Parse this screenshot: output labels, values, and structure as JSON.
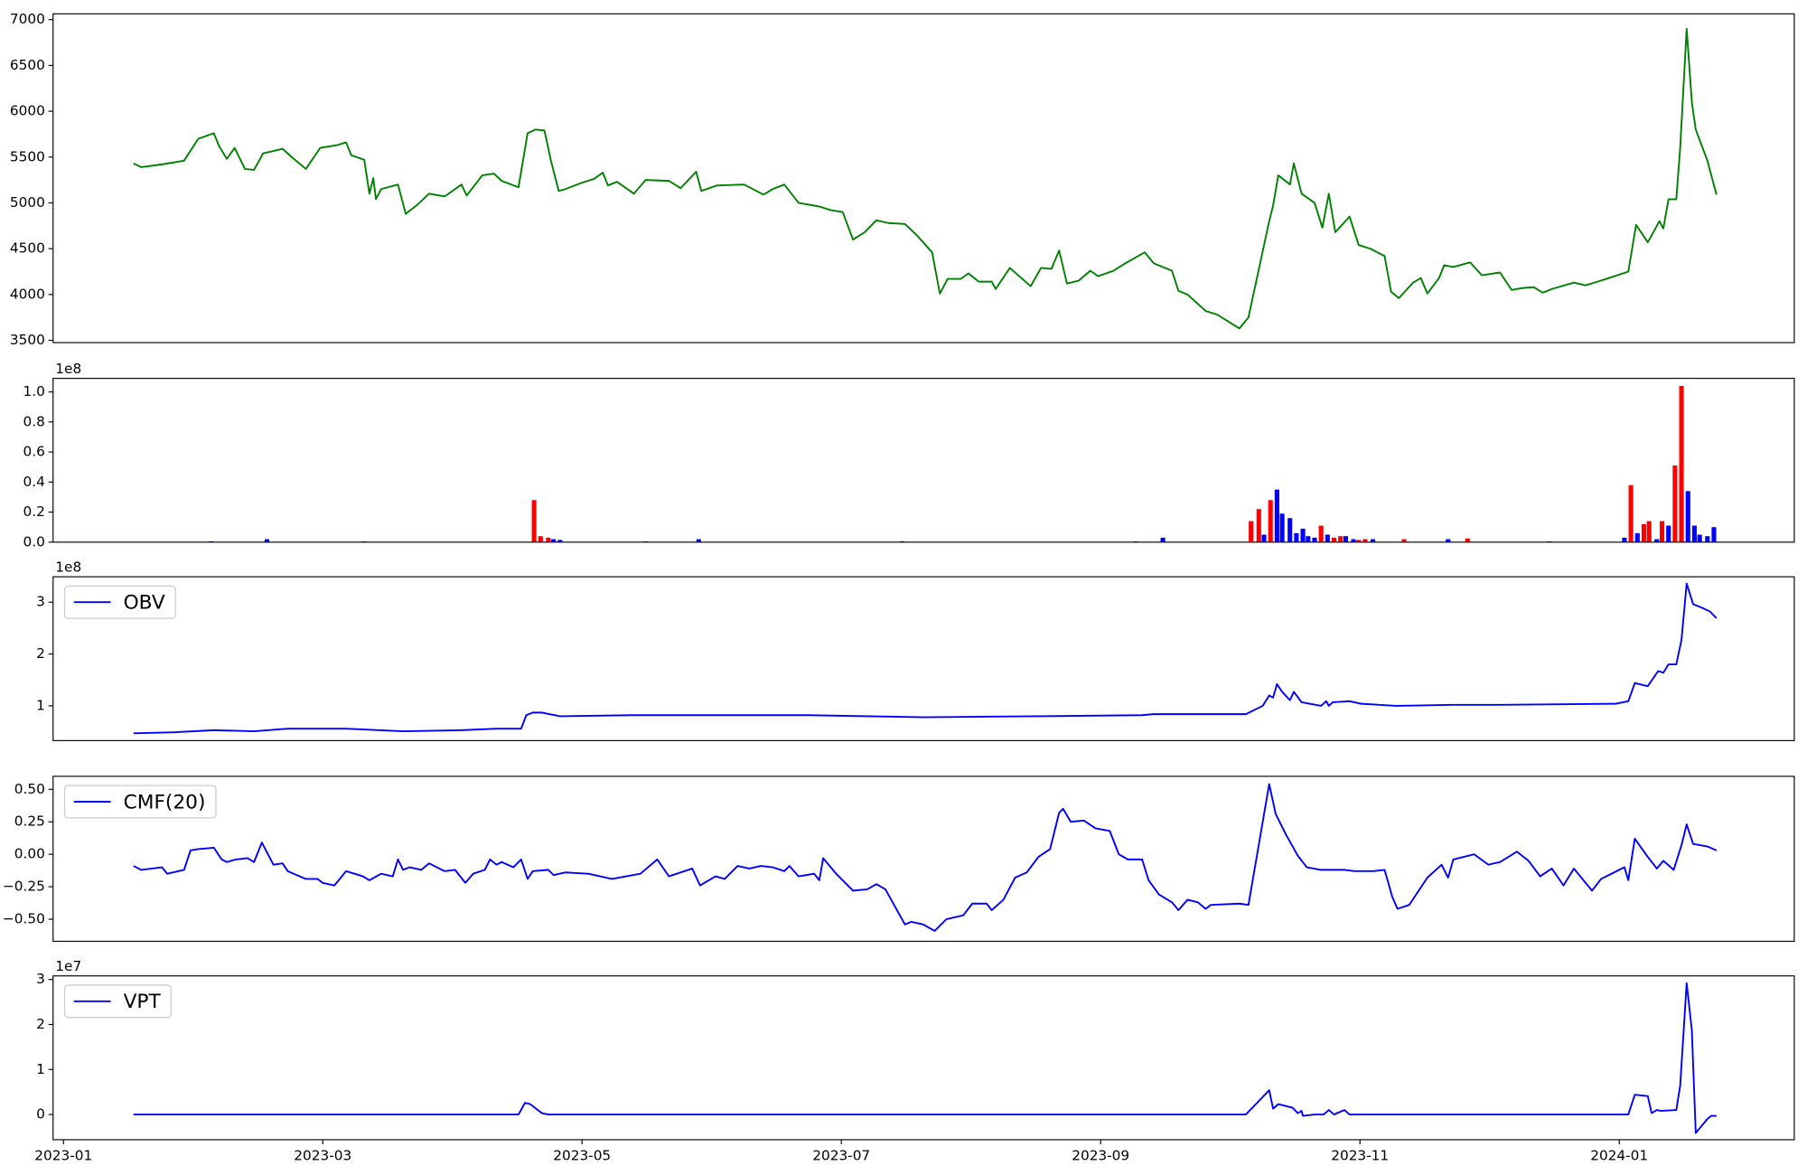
{
  "chart_data": [
    {
      "type": "line",
      "color": "green",
      "xlim": [
        -0.08,
        13.35
      ],
      "ylim": [
        3475,
        7063
      ],
      "yticks": [
        3500,
        4000,
        4500,
        5000,
        5500,
        6000,
        6500,
        7000
      ],
      "x": [
        0.54,
        0.6,
        0.76,
        0.93,
        1.04,
        1.16,
        1.2,
        1.26,
        1.32,
        1.4,
        1.47,
        1.54,
        1.69,
        1.76,
        1.87,
        1.98,
        2.11,
        2.18,
        2.22,
        2.32,
        2.36,
        2.39,
        2.41,
        2.45,
        2.58,
        2.64,
        2.73,
        2.82,
        2.94,
        3.07,
        3.11,
        3.23,
        3.32,
        3.38,
        3.51,
        3.58,
        3.64,
        3.71,
        3.76,
        3.82,
        3.87,
        4.0,
        4.09,
        4.16,
        4.2,
        4.27,
        4.4,
        4.49,
        4.67,
        4.76,
        4.88,
        4.92,
        5.04,
        5.25,
        5.4,
        5.47,
        5.56,
        5.67,
        5.83,
        5.92,
        6.01,
        6.09,
        6.18,
        6.27,
        6.36,
        6.49,
        6.58,
        6.7,
        6.76,
        6.82,
        6.92,
        6.98,
        7.06,
        7.16,
        7.19,
        7.3,
        7.46,
        7.54,
        7.62,
        7.68,
        7.74,
        7.83,
        7.92,
        7.98,
        8.1,
        8.19,
        8.34,
        8.41,
        8.55,
        8.6,
        8.67,
        8.81,
        8.9,
        9.07,
        9.14,
        9.3,
        9.33,
        9.37,
        9.46,
        9.49,
        9.55,
        9.65,
        9.71,
        9.76,
        9.81,
        9.92,
        9.99,
        10.08,
        10.19,
        10.24,
        10.3,
        10.41,
        10.47,
        10.52,
        10.61,
        10.65,
        10.72,
        10.85,
        10.94,
        11.08,
        11.17,
        11.25,
        11.34,
        11.41,
        11.48,
        11.65,
        11.74,
        11.81,
        11.9,
        12.07,
        12.13,
        12.22,
        12.31,
        12.34,
        12.38,
        12.44,
        12.47,
        12.52,
        12.56,
        12.59,
        12.68,
        12.75
      ],
      "values": [
        5430,
        5390,
        5420,
        5460,
        5700,
        5760,
        5620,
        5480,
        5600,
        5370,
        5360,
        5540,
        5590,
        5500,
        5370,
        5600,
        5630,
        5660,
        5520,
        5470,
        5100,
        5270,
        5040,
        5150,
        5200,
        4880,
        4980,
        5100,
        5070,
        5200,
        5080,
        5300,
        5320,
        5240,
        5170,
        5760,
        5800,
        5790,
        5460,
        5130,
        5150,
        5220,
        5260,
        5330,
        5190,
        5230,
        5100,
        5250,
        5240,
        5160,
        5340,
        5130,
        5190,
        5200,
        5090,
        5150,
        5200,
        5000,
        4960,
        4920,
        4900,
        4600,
        4680,
        4810,
        4780,
        4770,
        4650,
        4460,
        4010,
        4170,
        4170,
        4230,
        4140,
        4140,
        4060,
        4290,
        4090,
        4290,
        4280,
        4480,
        4120,
        4150,
        4260,
        4200,
        4260,
        4340,
        4460,
        4340,
        4260,
        4040,
        4000,
        3820,
        3780,
        3630,
        3750,
        4800,
        4970,
        5300,
        5200,
        5430,
        5100,
        5000,
        4730,
        5100,
        4680,
        4850,
        4540,
        4500,
        4420,
        4030,
        3960,
        4130,
        4180,
        4010,
        4180,
        4320,
        4300,
        4350,
        4210,
        4240,
        4050,
        4070,
        4080,
        4020,
        4060,
        4130,
        4100,
        4130,
        4170,
        4250,
        4760,
        4570,
        4800,
        4720,
        5040,
        5040,
        5600,
        6900,
        6100,
        5800,
        5460,
        5090
      ]
    },
    {
      "type": "bar",
      "xlim": [
        -0.08,
        13.35
      ],
      "ylim": [
        0,
        1.09
      ],
      "y_offset_label": "1e8",
      "yticks": [
        {
          "value": 0,
          "label": "0.0"
        },
        0.2,
        0.4,
        0.6,
        0.8,
        {
          "value": 1,
          "label": "1.0"
        }
      ],
      "x": [
        1.14,
        1.57,
        2.32,
        3.63,
        3.68,
        3.74,
        3.78,
        3.83,
        4.49,
        4.9,
        6.47,
        8.27,
        8.48,
        9.16,
        9.22,
        9.26,
        9.31,
        9.36,
        9.4,
        9.46,
        9.51,
        9.56,
        9.6,
        9.65,
        9.7,
        9.75,
        9.8,
        9.85,
        9.89,
        9.95,
        9.99,
        10.04,
        10.1,
        10.34,
        10.68,
        10.83,
        11.46,
        12.04,
        12.09,
        12.14,
        12.19,
        12.23,
        12.29,
        12.33,
        12.38,
        12.43,
        12.48,
        12.53,
        12.58,
        12.62,
        12.68,
        12.73
      ],
      "values": [
        0.006,
        0.02,
        0.005,
        0.28,
        0.04,
        0.03,
        0.02,
        0.015,
        0.006,
        0.02,
        0.006,
        0.005,
        0.03,
        0.14,
        0.22,
        0.05,
        0.28,
        0.35,
        0.19,
        0.16,
        0.06,
        0.09,
        0.04,
        0.03,
        0.11,
        0.05,
        0.03,
        0.04,
        0.04,
        0.02,
        0.015,
        0.02,
        0.02,
        0.02,
        0.02,
        0.025,
        0.005,
        0.03,
        0.38,
        0.06,
        0.12,
        0.14,
        0.02,
        0.14,
        0.11,
        0.51,
        1.04,
        0.34,
        0.11,
        0.05,
        0.04,
        0.1
      ],
      "colors": [
        "blue",
        "blue",
        "blue",
        "red",
        "red",
        "red",
        "blue",
        "blue",
        "red",
        "blue",
        "blue",
        "blue",
        "blue",
        "red",
        "red",
        "blue",
        "red",
        "blue",
        "blue",
        "blue",
        "blue",
        "blue",
        "blue",
        "blue",
        "red",
        "blue",
        "red",
        "red",
        "blue",
        "blue",
        "red",
        "red",
        "blue",
        "red",
        "blue",
        "red",
        "blue",
        "blue",
        "red",
        "blue",
        "red",
        "red",
        "blue",
        "red",
        "blue",
        "red",
        "red",
        "blue",
        "blue",
        "blue",
        "blue",
        "blue"
      ]
    },
    {
      "type": "line",
      "xlim": [
        -0.08,
        13.35
      ],
      "ylim": [
        0.33,
        3.49
      ],
      "y_offset_label": "1e8",
      "yticks": [
        1,
        2,
        3
      ],
      "legend": "upper left",
      "x": [
        0.54,
        0.85,
        1.16,
        1.47,
        1.73,
        2.18,
        2.62,
        3.07,
        3.34,
        3.53,
        3.57,
        3.62,
        3.69,
        3.83,
        4.4,
        5.29,
        5.74,
        6.63,
        7.52,
        8.32,
        8.41,
        9.12,
        9.25,
        9.3,
        9.33,
        9.36,
        9.4,
        9.46,
        9.49,
        9.55,
        9.7,
        9.74,
        9.76,
        9.79,
        9.92,
        10.01,
        10.28,
        10.72,
        11.08,
        11.97,
        12.07,
        12.12,
        12.22,
        12.3,
        12.34,
        12.38,
        12.44,
        12.48,
        12.52,
        12.57,
        12.64,
        12.7,
        12.75
      ],
      "series": [
        {
          "name": "OBV",
          "color": "blue",
          "values": [
            0.47,
            0.49,
            0.53,
            0.51,
            0.56,
            0.56,
            0.51,
            0.53,
            0.56,
            0.56,
            0.82,
            0.87,
            0.87,
            0.8,
            0.82,
            0.82,
            0.82,
            0.78,
            0.8,
            0.82,
            0.84,
            0.84,
            1.0,
            1.2,
            1.16,
            1.42,
            1.27,
            1.11,
            1.27,
            1.07,
            1.0,
            1.09,
            1.0,
            1.07,
            1.09,
            1.04,
            1.0,
            1.02,
            1.02,
            1.04,
            1.09,
            1.44,
            1.38,
            1.67,
            1.64,
            1.8,
            1.8,
            2.27,
            3.36,
            2.96,
            2.89,
            2.82,
            2.69
          ]
        }
      ]
    },
    {
      "type": "line",
      "xlim": [
        -0.08,
        13.35
      ],
      "ylim": [
        -0.67,
        0.6
      ],
      "legend": "upper left",
      "yticks": [
        {
          "value": -0.5,
          "label": "−0.50"
        },
        {
          "value": -0.25,
          "label": "−0.25"
        },
        {
          "value": 0,
          "label": "0.00"
        },
        {
          "value": 0.25,
          "label": "0.25"
        },
        {
          "value": 0.5,
          "label": "0.50"
        }
      ],
      "x": [
        0.54,
        0.6,
        0.76,
        0.8,
        0.93,
        0.98,
        1.04,
        1.16,
        1.22,
        1.26,
        1.33,
        1.42,
        1.47,
        1.53,
        1.62,
        1.69,
        1.73,
        1.87,
        1.96,
        2.0,
        2.09,
        2.18,
        2.31,
        2.36,
        2.45,
        2.54,
        2.58,
        2.62,
        2.67,
        2.76,
        2.82,
        2.94,
        3.02,
        3.1,
        3.16,
        3.25,
        3.29,
        3.34,
        3.38,
        3.47,
        3.53,
        3.58,
        3.62,
        3.74,
        3.78,
        3.87,
        4.05,
        4.23,
        4.45,
        4.58,
        4.67,
        4.85,
        4.91,
        5.03,
        5.1,
        5.2,
        5.29,
        5.38,
        5.47,
        5.56,
        5.6,
        5.67,
        5.79,
        5.83,
        5.86,
        5.96,
        6.09,
        6.2,
        6.27,
        6.34,
        6.49,
        6.54,
        6.63,
        6.72,
        6.81,
        6.94,
        7.01,
        7.12,
        7.16,
        7.25,
        7.34,
        7.43,
        7.52,
        7.61,
        7.68,
        7.71,
        7.77,
        7.87,
        7.96,
        8.07,
        8.14,
        8.21,
        8.32,
        8.37,
        8.45,
        8.55,
        8.6,
        8.67,
        8.75,
        8.81,
        8.85,
        9.07,
        9.14,
        9.3,
        9.35,
        9.43,
        9.52,
        9.59,
        9.7,
        9.79,
        9.88,
        9.96,
        10.1,
        10.19,
        10.25,
        10.29,
        10.38,
        10.52,
        10.63,
        10.68,
        10.72,
        10.88,
        10.99,
        11.08,
        11.21,
        11.3,
        11.39,
        11.48,
        11.57,
        11.65,
        11.79,
        11.86,
        12.04,
        12.07,
        12.12,
        12.22,
        12.29,
        12.34,
        12.42,
        12.48,
        12.52,
        12.57,
        12.68,
        12.75
      ],
      "series": [
        {
          "name": "CMF(20)",
          "color": "blue",
          "values": [
            -0.09,
            -0.12,
            -0.1,
            -0.15,
            -0.12,
            0.03,
            0.04,
            0.05,
            -0.04,
            -0.06,
            -0.04,
            -0.03,
            -0.06,
            0.09,
            -0.08,
            -0.07,
            -0.13,
            -0.19,
            -0.19,
            -0.22,
            -0.24,
            -0.13,
            -0.17,
            -0.2,
            -0.15,
            -0.17,
            -0.04,
            -0.12,
            -0.1,
            -0.12,
            -0.07,
            -0.13,
            -0.12,
            -0.22,
            -0.15,
            -0.12,
            -0.04,
            -0.08,
            -0.06,
            -0.1,
            -0.04,
            -0.19,
            -0.13,
            -0.12,
            -0.16,
            -0.14,
            -0.15,
            -0.19,
            -0.15,
            -0.04,
            -0.17,
            -0.11,
            -0.24,
            -0.17,
            -0.19,
            -0.09,
            -0.11,
            -0.09,
            -0.1,
            -0.13,
            -0.09,
            -0.17,
            -0.15,
            -0.2,
            -0.03,
            -0.15,
            -0.28,
            -0.27,
            -0.23,
            -0.27,
            -0.54,
            -0.52,
            -0.54,
            -0.59,
            -0.5,
            -0.47,
            -0.38,
            -0.38,
            -0.43,
            -0.35,
            -0.18,
            -0.14,
            -0.02,
            0.04,
            0.32,
            0.35,
            0.25,
            0.26,
            0.2,
            0.18,
            0.0,
            -0.04,
            -0.04,
            -0.2,
            -0.31,
            -0.37,
            -0.43,
            -0.35,
            -0.37,
            -0.42,
            -0.39,
            -0.38,
            -0.39,
            0.54,
            0.31,
            0.15,
            -0.01,
            -0.1,
            -0.12,
            -0.12,
            -0.12,
            -0.13,
            -0.13,
            -0.12,
            -0.33,
            -0.42,
            -0.39,
            -0.18,
            -0.08,
            -0.18,
            -0.04,
            0.0,
            -0.08,
            -0.06,
            0.02,
            -0.05,
            -0.17,
            -0.11,
            -0.24,
            -0.11,
            -0.28,
            -0.19,
            -0.1,
            -0.2,
            0.12,
            -0.02,
            -0.11,
            -0.05,
            -0.12,
            0.07,
            0.23,
            0.08,
            0.06,
            0.03
          ]
        }
      ]
    },
    {
      "type": "line",
      "xlim": [
        -0.08,
        13.35
      ],
      "ylim": [
        -0.56,
        3.08
      ],
      "y_offset_label": "1e7",
      "yticks": [
        0,
        1,
        2,
        3
      ],
      "legend": "upper left",
      "xticks": [
        {
          "value": 0,
          "label": "2023-01"
        },
        {
          "value": 2,
          "label": "2023-03"
        },
        {
          "value": 4,
          "label": "2023-05"
        },
        {
          "value": 6,
          "label": "2023-07"
        },
        {
          "value": 8,
          "label": "2023-09"
        },
        {
          "value": 10,
          "label": "2023-11"
        },
        {
          "value": 12,
          "label": "2024-01"
        }
      ],
      "x": [
        0.54,
        3.51,
        3.56,
        3.6,
        3.69,
        3.74,
        3.96,
        9.12,
        9.3,
        9.33,
        9.37,
        9.48,
        9.52,
        9.55,
        9.56,
        9.65,
        9.72,
        9.76,
        9.8,
        9.88,
        9.92,
        12.07,
        12.12,
        12.22,
        12.25,
        12.29,
        12.32,
        12.44,
        12.47,
        12.52,
        12.56,
        12.59,
        12.68,
        12.71,
        12.75
      ],
      "series": [
        {
          "name": "VPT",
          "color": "blue",
          "values": [
            0,
            0,
            0.26,
            0.23,
            0.03,
            0,
            0,
            0,
            0.54,
            0.13,
            0.23,
            0.15,
            0.03,
            0.08,
            -0.03,
            0,
            0,
            0.1,
            0,
            0.1,
            0,
            0,
            0.44,
            0.41,
            0.03,
            0.1,
            0.08,
            0.1,
            0.64,
            2.92,
            1.87,
            -0.41,
            -0.1,
            -0.03,
            -0.03
          ]
        }
      ]
    }
  ]
}
